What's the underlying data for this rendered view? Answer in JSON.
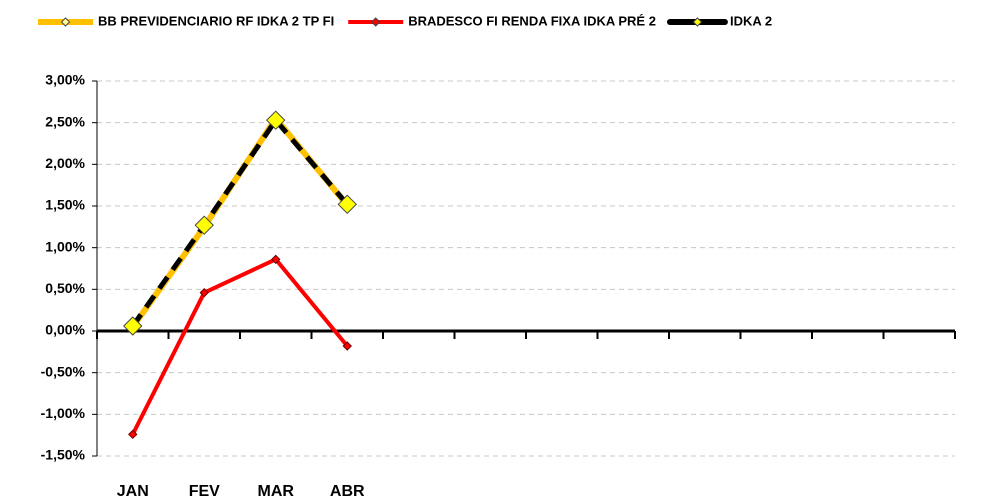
{
  "chart_data": {
    "type": "line",
    "categories": [
      "JAN",
      "FEV",
      "MAR",
      "ABR",
      null,
      null,
      null,
      null,
      null,
      null,
      null,
      null
    ],
    "series": [
      {
        "name": "BB PREVIDENCIARIO RF IDKA 2 TP FI",
        "color": "#ffc000",
        "marker_color": "#ffff99",
        "values": [
          0.05,
          1.25,
          2.55,
          1.51,
          null,
          null,
          null,
          null,
          null,
          null,
          null,
          null
        ]
      },
      {
        "name": "BRADESCO FI RENDA FIXA IDKA PRÉ 2",
        "color": "#ff0000",
        "marker_color": "#ff0000",
        "values": [
          -1.24,
          0.46,
          0.86,
          -0.18,
          null,
          null,
          null,
          null,
          null,
          null,
          null,
          null
        ]
      },
      {
        "name": "IDKA 2",
        "color": "#000000",
        "marker_color": "#ffff00",
        "values": [
          0.06,
          1.27,
          2.53,
          1.52,
          null,
          null,
          null,
          null,
          null,
          null,
          null,
          null
        ]
      }
    ],
    "ylim": [
      -1.5,
      3.0
    ],
    "yticks": [
      {
        "value": -1.5,
        "label": "-1,50%"
      },
      {
        "value": -1.0,
        "label": "-1,00%"
      },
      {
        "value": -0.5,
        "label": "-0,50%"
      },
      {
        "value": 0,
        "label": "0,00%"
      },
      {
        "value": 0.5,
        "label": "0,50%"
      },
      {
        "value": 1.0,
        "label": "1,00%"
      },
      {
        "value": 1.5,
        "label": "1,50%"
      },
      {
        "value": 2.0,
        "label": "2,00%"
      },
      {
        "value": 2.5,
        "label": "2,50%"
      },
      {
        "value": 3.0,
        "label": "3,00%"
      }
    ],
    "grid": true,
    "legend": "top"
  }
}
